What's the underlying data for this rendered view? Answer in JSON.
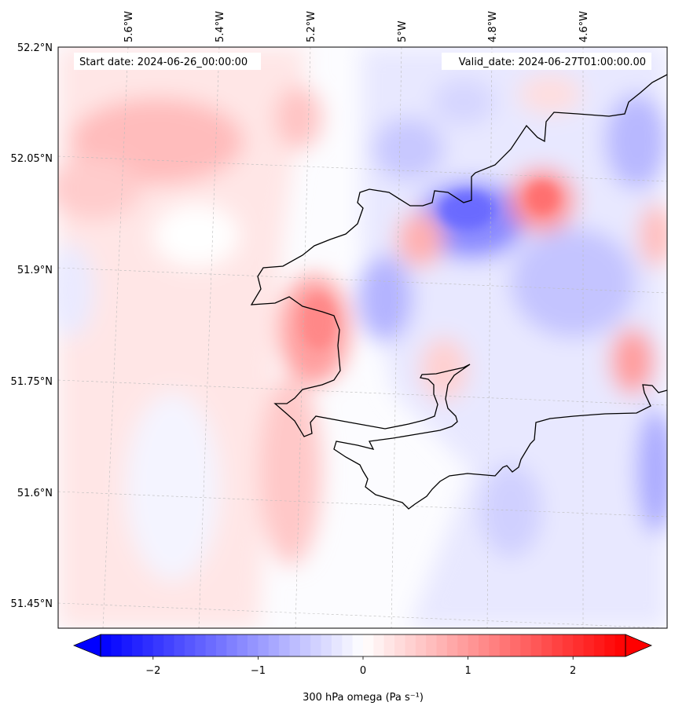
{
  "header": {
    "start_label": "Start date: 2024-06-26_00:00:00",
    "valid_label": "Valid_date: 2024-06-27T01:00:00.00"
  },
  "map": {
    "lon_ticks": [
      {
        "value": -5.6,
        "label": "5.6°W"
      },
      {
        "value": -5.4,
        "label": "5.4°W"
      },
      {
        "value": -5.2,
        "label": "5.2°W"
      },
      {
        "value": -5.0,
        "label": "5°W"
      },
      {
        "value": -4.8,
        "label": "4.8°W"
      },
      {
        "value": -4.6,
        "label": "4.6°W"
      }
    ],
    "lat_ticks": [
      {
        "value": 52.2,
        "label": "52.2°N"
      },
      {
        "value": 52.05,
        "label": "52.05°N"
      },
      {
        "value": 51.9,
        "label": "51.9°N"
      },
      {
        "value": 51.75,
        "label": "51.75°N"
      },
      {
        "value": 51.6,
        "label": "51.6°N"
      },
      {
        "value": 51.45,
        "label": "51.45°N"
      }
    ],
    "lon_range": [
      -5.75,
      -4.4
    ],
    "lat_range": [
      51.42,
      52.2
    ],
    "gridlines": true,
    "coastline_color": "#000000"
  },
  "colorbar": {
    "label": "300 hPa omega (Pa s⁻¹)",
    "range": [
      -2.5,
      2.5
    ],
    "ticks": [
      {
        "value": -2,
        "label": "−2"
      },
      {
        "value": -1,
        "label": "−1"
      },
      {
        "value": 0,
        "label": "0"
      },
      {
        "value": 1,
        "label": "1"
      },
      {
        "value": 2,
        "label": "2"
      }
    ],
    "levels": 50,
    "extend": "both",
    "colormap": "bwr",
    "low_color": "#0000ff",
    "mid_color": "#ffffff",
    "high_color": "#ff0000"
  }
}
